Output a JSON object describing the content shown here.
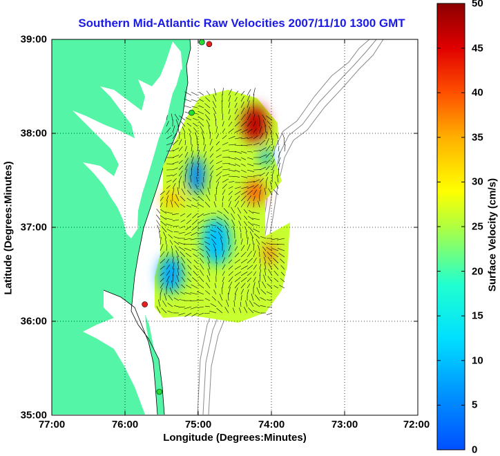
{
  "title": "Southern Mid-Atlantic Raw Velocities 2007/11/10 1300 GMT",
  "xlabel": "Longitude (Degrees:Minutes)",
  "ylabel": "Latitude (Degrees:Minutes)",
  "colorbar_label": "Surface Velocity (cm/s)",
  "x_ticks": [
    "77:00",
    "76:00",
    "75:00",
    "74:00",
    "73:00",
    "72:00"
  ],
  "y_ticks": [
    "39:00",
    "38:00",
    "37:00",
    "36:00",
    "35:00"
  ],
  "colorbar_ticks": [
    "0",
    "5",
    "10",
    "15",
    "20",
    "25",
    "30",
    "35",
    "40",
    "45",
    "50"
  ],
  "colors": {
    "land": "#55f5a8",
    "bathymetry": "#8a8a8a",
    "title": "#1a1ae6",
    "station": "#e62020",
    "station_alt": "#22dd33"
  },
  "chart_data": {
    "type": "heatmap",
    "title": "Southern Mid-Atlantic Raw Velocities 2007/11/10 1300 GMT",
    "xlabel": "Longitude (Degrees:Minutes)",
    "ylabel": "Latitude (Degrees:Minutes)",
    "xlim": [
      -77,
      -72
    ],
    "ylim": [
      35,
      39
    ],
    "clim": [
      0,
      50
    ],
    "colormap": "jet",
    "colorbar_label": "Surface Velocity (cm/s)",
    "grid": true,
    "field_regions": [
      {
        "lon": [
          -74.4,
          -74.05
        ],
        "lat": [
          37.9,
          38.3
        ],
        "speed": 47
      },
      {
        "lon": [
          -75.15,
          -74.9
        ],
        "lat": [
          37.35,
          37.75
        ],
        "speed": 5
      },
      {
        "lon": [
          -74.35,
          -74.1
        ],
        "lat": [
          37.25,
          37.5
        ],
        "speed": 40
      },
      {
        "lon": [
          -75.5,
          -75.2
        ],
        "lat": [
          37.2,
          37.4
        ],
        "speed": 33
      },
      {
        "lon": [
          -74.95,
          -74.55
        ],
        "lat": [
          36.6,
          37.1
        ],
        "speed": 10
      },
      {
        "lon": [
          -75.55,
          -75.2
        ],
        "lat": [
          36.3,
          36.7
        ],
        "speed": 8
      },
      {
        "lon": [
          -74.1,
          -73.95
        ],
        "lat": [
          36.6,
          36.85
        ],
        "speed": 38
      },
      {
        "lon": [
          -74.15,
          -74.0
        ],
        "lat": [
          37.65,
          37.85
        ],
        "speed": 8
      }
    ],
    "stations": [
      {
        "lon": -74.85,
        "lat": 38.95,
        "color": "red"
      },
      {
        "lon": -74.95,
        "lat": 38.97,
        "color": "green"
      },
      {
        "lon": -75.09,
        "lat": 38.22,
        "color": "green"
      },
      {
        "lon": -75.73,
        "lat": 36.18,
        "color": "red"
      },
      {
        "lon": -75.53,
        "lat": 35.25,
        "color": "green"
      }
    ]
  }
}
